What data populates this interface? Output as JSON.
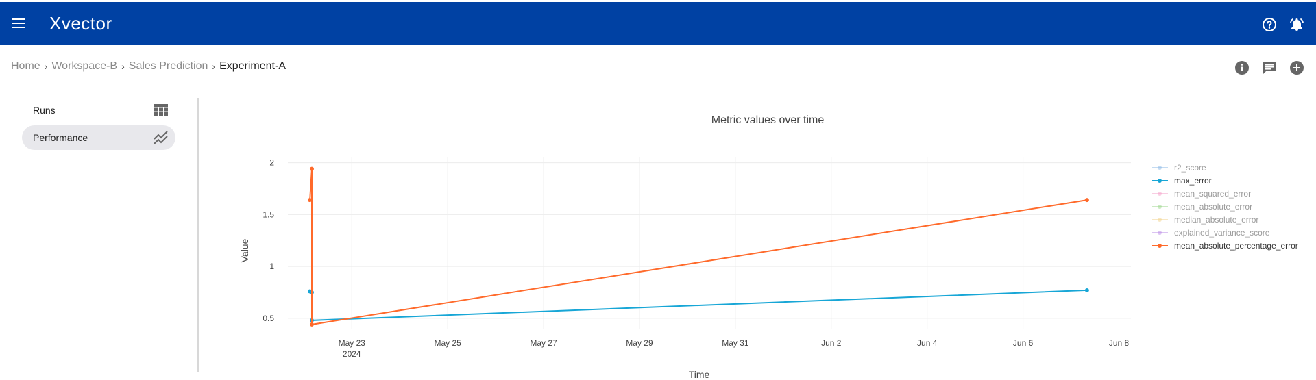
{
  "app": {
    "brand": "Xvector"
  },
  "icons": {
    "menu": "menu-icon",
    "help": "help-circle-icon",
    "notifications": "bell-ring-icon",
    "info": "info-icon",
    "comment": "comment-icon",
    "add": "add-circle-icon"
  },
  "breadcrumb": {
    "items": [
      "Home",
      "Workspace-B",
      "Sales Prediction"
    ],
    "current": "Experiment-A",
    "separator": "›"
  },
  "sidebar": {
    "items": [
      {
        "label": "Runs",
        "icon": "table-icon",
        "active": false
      },
      {
        "label": "Performance",
        "icon": "chart-line-icon",
        "active": true
      }
    ]
  },
  "colors": {
    "topbar": "#0041a3",
    "orange": "#ff6a2b",
    "blue": "#17a6d6"
  },
  "chart_data": {
    "type": "line",
    "title": "Metric values over time",
    "xlabel": "Time",
    "ylabel": "Value",
    "xlim": [
      "2024-05-21T16:00",
      "2024-06-08T06:00"
    ],
    "ylim": [
      0.4,
      2.05
    ],
    "x_ticks": [
      "May 23",
      "May 25",
      "May 27",
      "May 29",
      "May 31",
      "Jun 2",
      "Jun 4",
      "Jun 6",
      "Jun 8"
    ],
    "x_tick_sublabel": "2024",
    "y_ticks": [
      0.5,
      1,
      1.5,
      2
    ],
    "grid": true,
    "legend_position": "right",
    "series": [
      {
        "name": "r2_score",
        "color": "#8ab8e6",
        "visible": false,
        "points": []
      },
      {
        "name": "max_error",
        "color": "#17a6d6",
        "visible": true,
        "points": [
          {
            "x": "2024-05-22T03:00",
            "y": 0.76
          },
          {
            "x": "2024-05-22T04:00",
            "y": 0.75
          },
          {
            "x": "2024-05-22T04:00",
            "y": 0.48
          },
          {
            "x": "2024-06-07T08:00",
            "y": 0.77
          }
        ]
      },
      {
        "name": "mean_squared_error",
        "color": "#f59ec8",
        "visible": false,
        "points": []
      },
      {
        "name": "mean_absolute_error",
        "color": "#9ad68a",
        "visible": false,
        "points": []
      },
      {
        "name": "median_absolute_error",
        "color": "#f2d28a",
        "visible": false,
        "points": []
      },
      {
        "name": "explained_variance_score",
        "color": "#b98ae6",
        "visible": false,
        "points": []
      },
      {
        "name": "mean_absolute_percentage_error",
        "color": "#ff6a2b",
        "visible": true,
        "points": [
          {
            "x": "2024-05-22T03:00",
            "y": 1.64
          },
          {
            "x": "2024-05-22T04:00",
            "y": 1.94
          },
          {
            "x": "2024-05-22T04:00",
            "y": 0.44
          },
          {
            "x": "2024-06-07T08:00",
            "y": 1.64
          }
        ]
      }
    ]
  }
}
